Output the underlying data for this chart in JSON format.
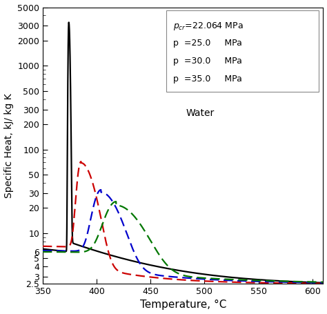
{
  "title": "",
  "xlabel": "Temperature, °C",
  "ylabel": "Specific Heat, kJ/ kg K",
  "xlim": [
    350,
    610
  ],
  "ylim": [
    2.5,
    5000
  ],
  "xticks": [
    350,
    400,
    450,
    500,
    550,
    600
  ],
  "yticks": [
    2.5,
    3,
    4,
    5,
    6,
    10,
    20,
    30,
    50,
    100,
    200,
    300,
    500,
    1000,
    2000,
    3000,
    5000
  ],
  "ytick_labels": [
    "2.5",
    "3",
    "4",
    "5",
    "6",
    "10",
    "20",
    "30",
    "50",
    "100",
    "200",
    "300",
    "500",
    "1000",
    "2000",
    "3000",
    "5000"
  ],
  "water_label": "Water",
  "colors": {
    "pcr": "#000000",
    "p25": "#cc0000",
    "p30": "#0000cc",
    "p35": "#007700"
  },
  "background": "#ffffff",
  "T_pcr_peak": 374.14,
  "T_p25_peak": 385.5,
  "T_p30_peak": 404.0,
  "T_p35_peak": 418.0,
  "peak_pcr": 3300,
  "peak_p25": 65,
  "peak_p30": 27,
  "peak_p35": 18,
  "figsize": [
    4.74,
    4.55
  ],
  "dpi": 100
}
